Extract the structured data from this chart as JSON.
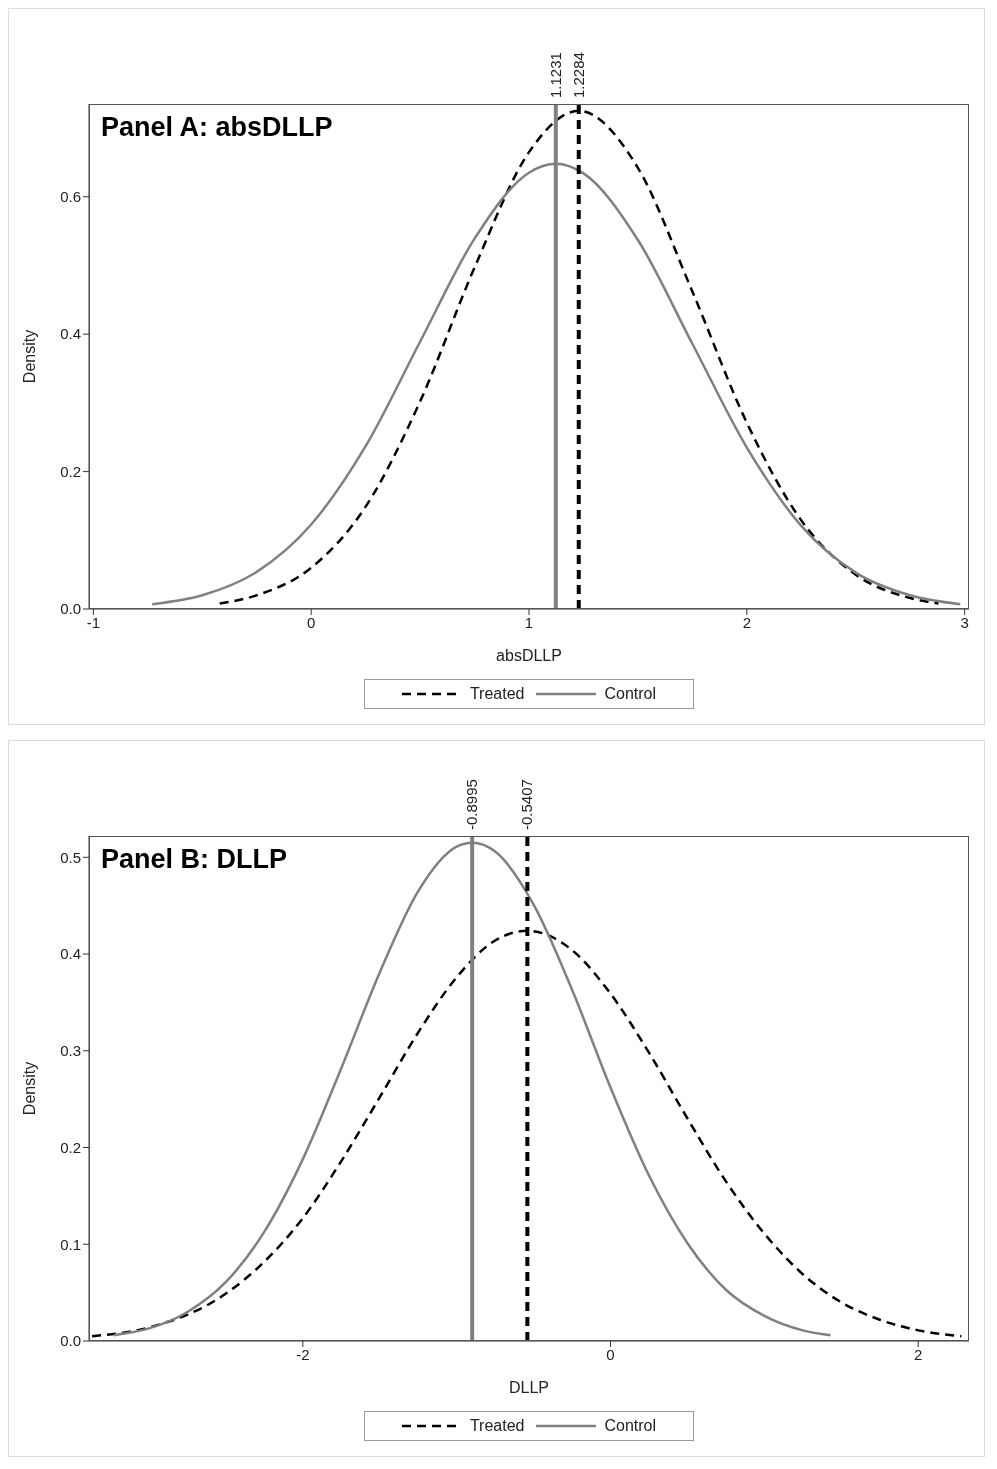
{
  "chart_data": [
    {
      "type": "line",
      "title": "Panel A: absDLLP",
      "xlabel": "absDLLP",
      "ylabel": "Density",
      "xlim": [
        -1.02,
        3.02
      ],
      "xticks": [
        -1,
        0,
        1,
        2,
        3
      ],
      "ylim": [
        0,
        0.735
      ],
      "yticks": [
        {
          "value": 0,
          "label": "0.0"
        },
        0.2,
        0.4,
        0.6
      ],
      "legend": "bottom",
      "marker": "none",
      "series": [
        {
          "name": "Treated",
          "color": "#000000",
          "line_style": "dashed",
          "x": [
            -0.42,
            -0.25,
            0,
            0.25,
            0.5,
            0.75,
            1.0,
            1.228,
            1.5,
            1.75,
            2.0,
            2.25,
            2.5,
            2.75,
            2.88
          ],
          "values": [
            0.008,
            0.02,
            0.06,
            0.149,
            0.302,
            0.497,
            0.665,
            0.725,
            0.642,
            0.462,
            0.271,
            0.129,
            0.05,
            0.016,
            0.008
          ]
        },
        {
          "name": "Control",
          "color": "#808080",
          "line_style": "solid",
          "x": [
            -0.73,
            -0.5,
            -0.25,
            0,
            0.25,
            0.5,
            0.75,
            1.0,
            1.123,
            1.25,
            1.5,
            1.75,
            2.0,
            2.25,
            2.5,
            2.75,
            2.98
          ],
          "values": [
            0.007,
            0.02,
            0.054,
            0.123,
            0.237,
            0.389,
            0.539,
            0.635,
            0.648,
            0.634,
            0.537,
            0.386,
            0.235,
            0.121,
            0.053,
            0.02,
            0.007
          ]
        }
      ],
      "ref_lines": [
        {
          "axis": "x",
          "value": 1.1231,
          "label": "1.1231",
          "color": "#808080",
          "line_style": "solid"
        },
        {
          "axis": "x",
          "value": 1.2284,
          "label": "1.2284",
          "color": "#000000",
          "line_style": "dashed"
        }
      ]
    },
    {
      "type": "line",
      "title": "Panel B: DLLP",
      "xlabel": "DLLP",
      "ylabel": "Density",
      "xlim": [
        -3.39,
        2.33
      ],
      "xticks": [
        -2,
        0,
        2
      ],
      "ylim": [
        0,
        0.522
      ],
      "yticks": [
        {
          "value": 0,
          "label": "0.0"
        },
        0.1,
        0.2,
        0.3,
        0.4,
        0.5
      ],
      "legend": "bottom",
      "marker": "none",
      "series": [
        {
          "name": "Treated",
          "color": "#000000",
          "line_style": "dashed",
          "x": [
            -3.37,
            -3,
            -2.5,
            -2.25,
            -2,
            -1.75,
            -1.5,
            -1.25,
            -1,
            -0.75,
            -0.5407,
            -0.25,
            0,
            0.25,
            0.5,
            0.75,
            1.0,
            1.25,
            1.5,
            1.75,
            2.0,
            2.28
          ],
          "values": [
            0.005,
            0.014,
            0.049,
            0.082,
            0.127,
            0.186,
            0.252,
            0.319,
            0.376,
            0.414,
            0.424,
            0.404,
            0.359,
            0.298,
            0.23,
            0.165,
            0.111,
            0.069,
            0.04,
            0.022,
            0.011,
            0.005
          ]
        },
        {
          "name": "Control",
          "color": "#808080",
          "line_style": "solid",
          "x": [
            -3.23,
            -3,
            -2.75,
            -2.5,
            -2.25,
            -2,
            -1.75,
            -1.5,
            -1.25,
            -1,
            -0.8995,
            -0.75,
            -0.5,
            -0.25,
            0,
            0.25,
            0.5,
            0.75,
            1.0,
            1.25,
            1.43
          ],
          "values": [
            0.006,
            0.013,
            0.03,
            0.061,
            0.113,
            0.188,
            0.282,
            0.381,
            0.465,
            0.511,
            0.515,
            0.506,
            0.451,
            0.363,
            0.262,
            0.171,
            0.101,
            0.053,
            0.026,
            0.011,
            0.006
          ]
        }
      ],
      "ref_lines": [
        {
          "axis": "x",
          "value": -0.8995,
          "label": "-0.8995",
          "color": "#808080",
          "line_style": "solid"
        },
        {
          "axis": "x",
          "value": -0.5407,
          "label": "-0.5407",
          "color": "#000000",
          "line_style": "dashed"
        }
      ]
    }
  ]
}
